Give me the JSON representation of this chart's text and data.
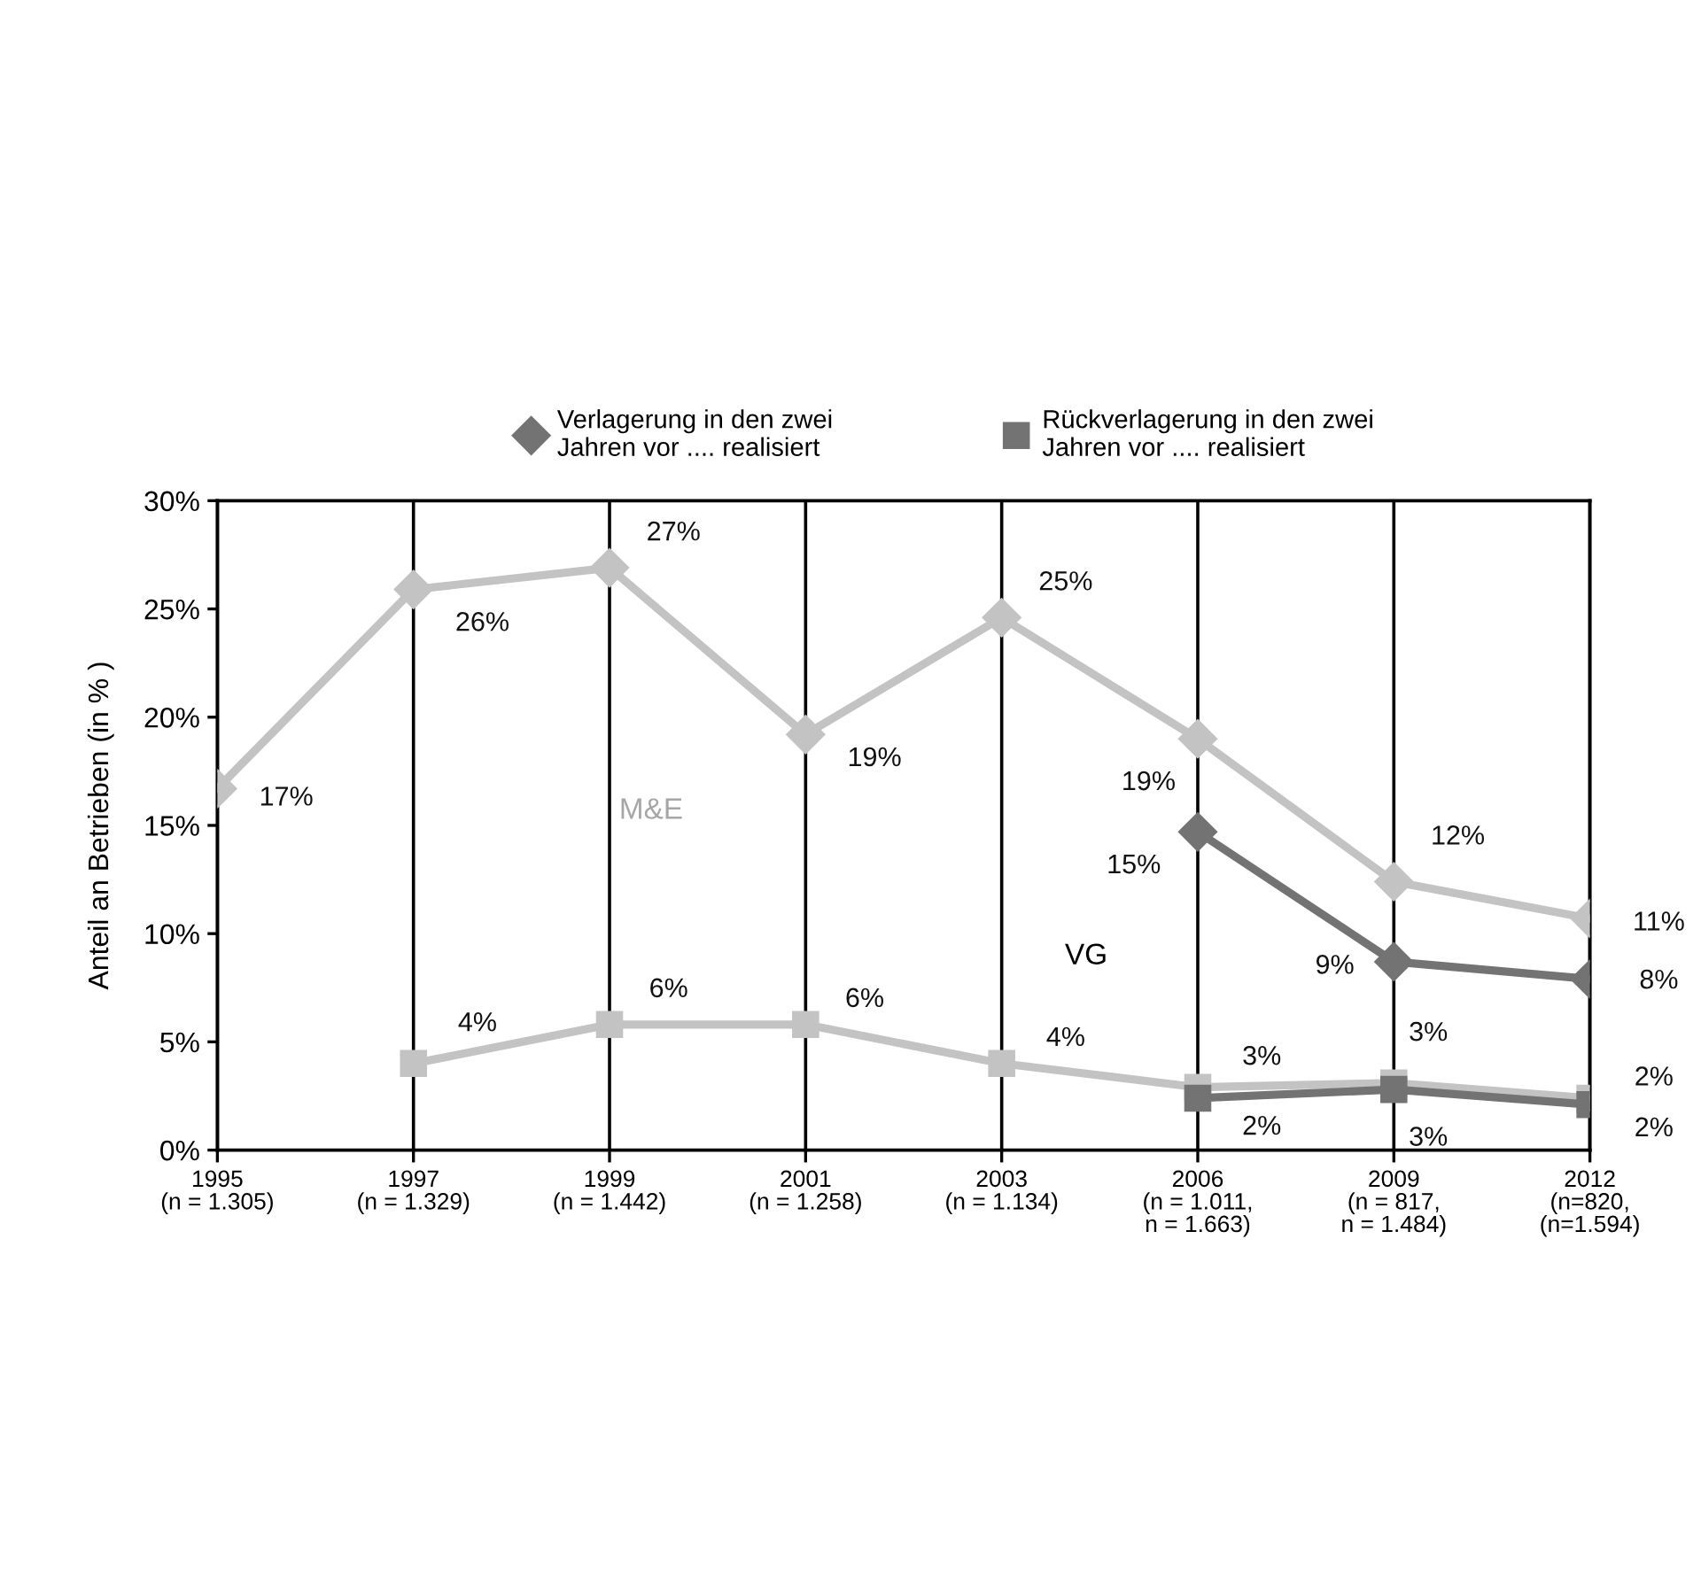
{
  "chart_data": {
    "type": "line",
    "ylabel": "Anteil an Betrieben (in % )",
    "categories": [
      "1995\n(n = 1.305)",
      "1997\n(n = 1.329)",
      "1999\n(n = 1.442)",
      "2001\n(n = 1.258)",
      "2003\n(n = 1.134)",
      "2006\n(n = 1.011,\nn = 1.663)",
      "2009\n(n = 817,\nn = 1.484)",
      "2012\n(n=820,\n(n=1.594)"
    ],
    "series": [
      {
        "color": "#c3c3c3",
        "marker": "diamond",
        "values": [
          16.7,
          25.9,
          26.9,
          19.2,
          24.6,
          19.0,
          12.4,
          10.7
        ],
        "value_labels": [
          "17%",
          "26%",
          "27%",
          "19%",
          "25%",
          "19%",
          "12%",
          "11%"
        ]
      },
      {
        "color": "#c3c3c3",
        "marker": "square",
        "values": [
          null,
          4.0,
          5.8,
          5.8,
          4.0,
          2.9,
          3.1,
          2.4
        ],
        "value_labels": [
          null,
          "4%",
          "6%",
          "6%",
          "4%",
          "3%",
          "3%",
          "2%"
        ]
      },
      {
        "name": "Verlagerung in den zwei\nJahren vor .... realisiert",
        "color": "#737373",
        "marker": "diamond",
        "values": [
          null,
          null,
          null,
          null,
          null,
          14.7,
          8.7,
          7.9
        ],
        "value_labels": [
          null,
          null,
          null,
          null,
          null,
          "15%",
          "9%",
          "8%"
        ]
      },
      {
        "name": "Rückverlagerung in den zwei\nJahren vor .... realisiert",
        "color": "#737373",
        "marker": "square",
        "values": [
          null,
          null,
          null,
          null,
          null,
          2.4,
          2.8,
          2.1
        ],
        "value_labels": [
          null,
          null,
          null,
          null,
          null,
          "2%",
          "3%",
          "2%"
        ]
      }
    ],
    "ylim": [
      0,
      30
    ],
    "yticks": [
      {
        "value": 0,
        "label": "0%"
      },
      {
        "value": 5,
        "label": "5%"
      },
      {
        "value": 10,
        "label": "10%"
      },
      {
        "value": 15,
        "label": "15%"
      },
      {
        "value": 20,
        "label": "20%"
      },
      {
        "value": 25,
        "label": "25%"
      },
      {
        "value": 30,
        "label": "30%"
      }
    ],
    "grid": "x",
    "legend": "top",
    "line_style": "solid",
    "annotations": [
      "M&E",
      "VG"
    ]
  }
}
